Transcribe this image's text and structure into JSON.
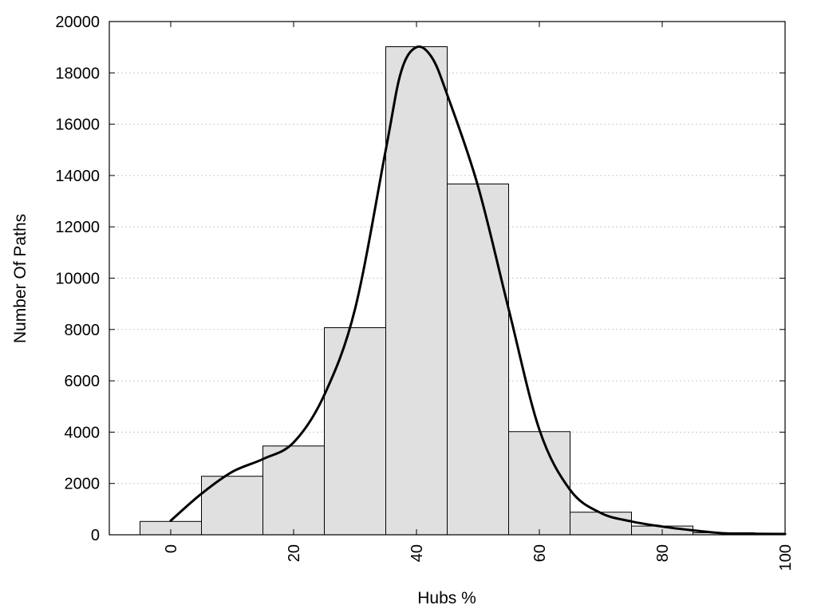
{
  "chart_data": {
    "type": "bar",
    "subtype": "histogram",
    "xlabel": "Hubs %",
    "ylabel": "Number Of Paths",
    "xlim": [
      -10,
      100
    ],
    "ylim": [
      0,
      20000
    ],
    "x_ticks": [
      0,
      20,
      40,
      60,
      80,
      100
    ],
    "y_ticks": [
      0,
      2000,
      4000,
      6000,
      8000,
      10000,
      12000,
      14000,
      16000,
      18000,
      20000
    ],
    "grid": "horizontal dotted",
    "bar_color": "#e0e0e0",
    "bins": [
      {
        "x0": -5,
        "x1": 5,
        "value": 520
      },
      {
        "x0": 5,
        "x1": 15,
        "value": 2280
      },
      {
        "x0": 15,
        "x1": 25,
        "value": 3460
      },
      {
        "x0": 25,
        "x1": 35,
        "value": 8070
      },
      {
        "x0": 35,
        "x1": 45,
        "value": 19020
      },
      {
        "x0": 45,
        "x1": 55,
        "value": 13670
      },
      {
        "x0": 55,
        "x1": 65,
        "value": 4020
      },
      {
        "x0": 65,
        "x1": 75,
        "value": 880
      },
      {
        "x0": 75,
        "x1": 85,
        "value": 340
      },
      {
        "x0": 85,
        "x1": 95,
        "value": 80
      },
      {
        "x0": 95,
        "x1": 100,
        "value": 30
      }
    ],
    "density_curve": {
      "x": [
        0,
        5,
        10,
        15,
        20,
        25,
        30,
        35,
        37.5,
        40,
        42.5,
        45,
        50,
        55,
        60,
        65,
        70,
        75,
        80,
        85,
        90,
        95,
        100
      ],
      "y": [
        550,
        1600,
        2450,
        2950,
        3600,
        5450,
        8800,
        15000,
        18050,
        19000,
        18600,
        17150,
        13600,
        8800,
        4100,
        1750,
        850,
        520,
        320,
        170,
        60,
        40,
        30
      ]
    }
  }
}
